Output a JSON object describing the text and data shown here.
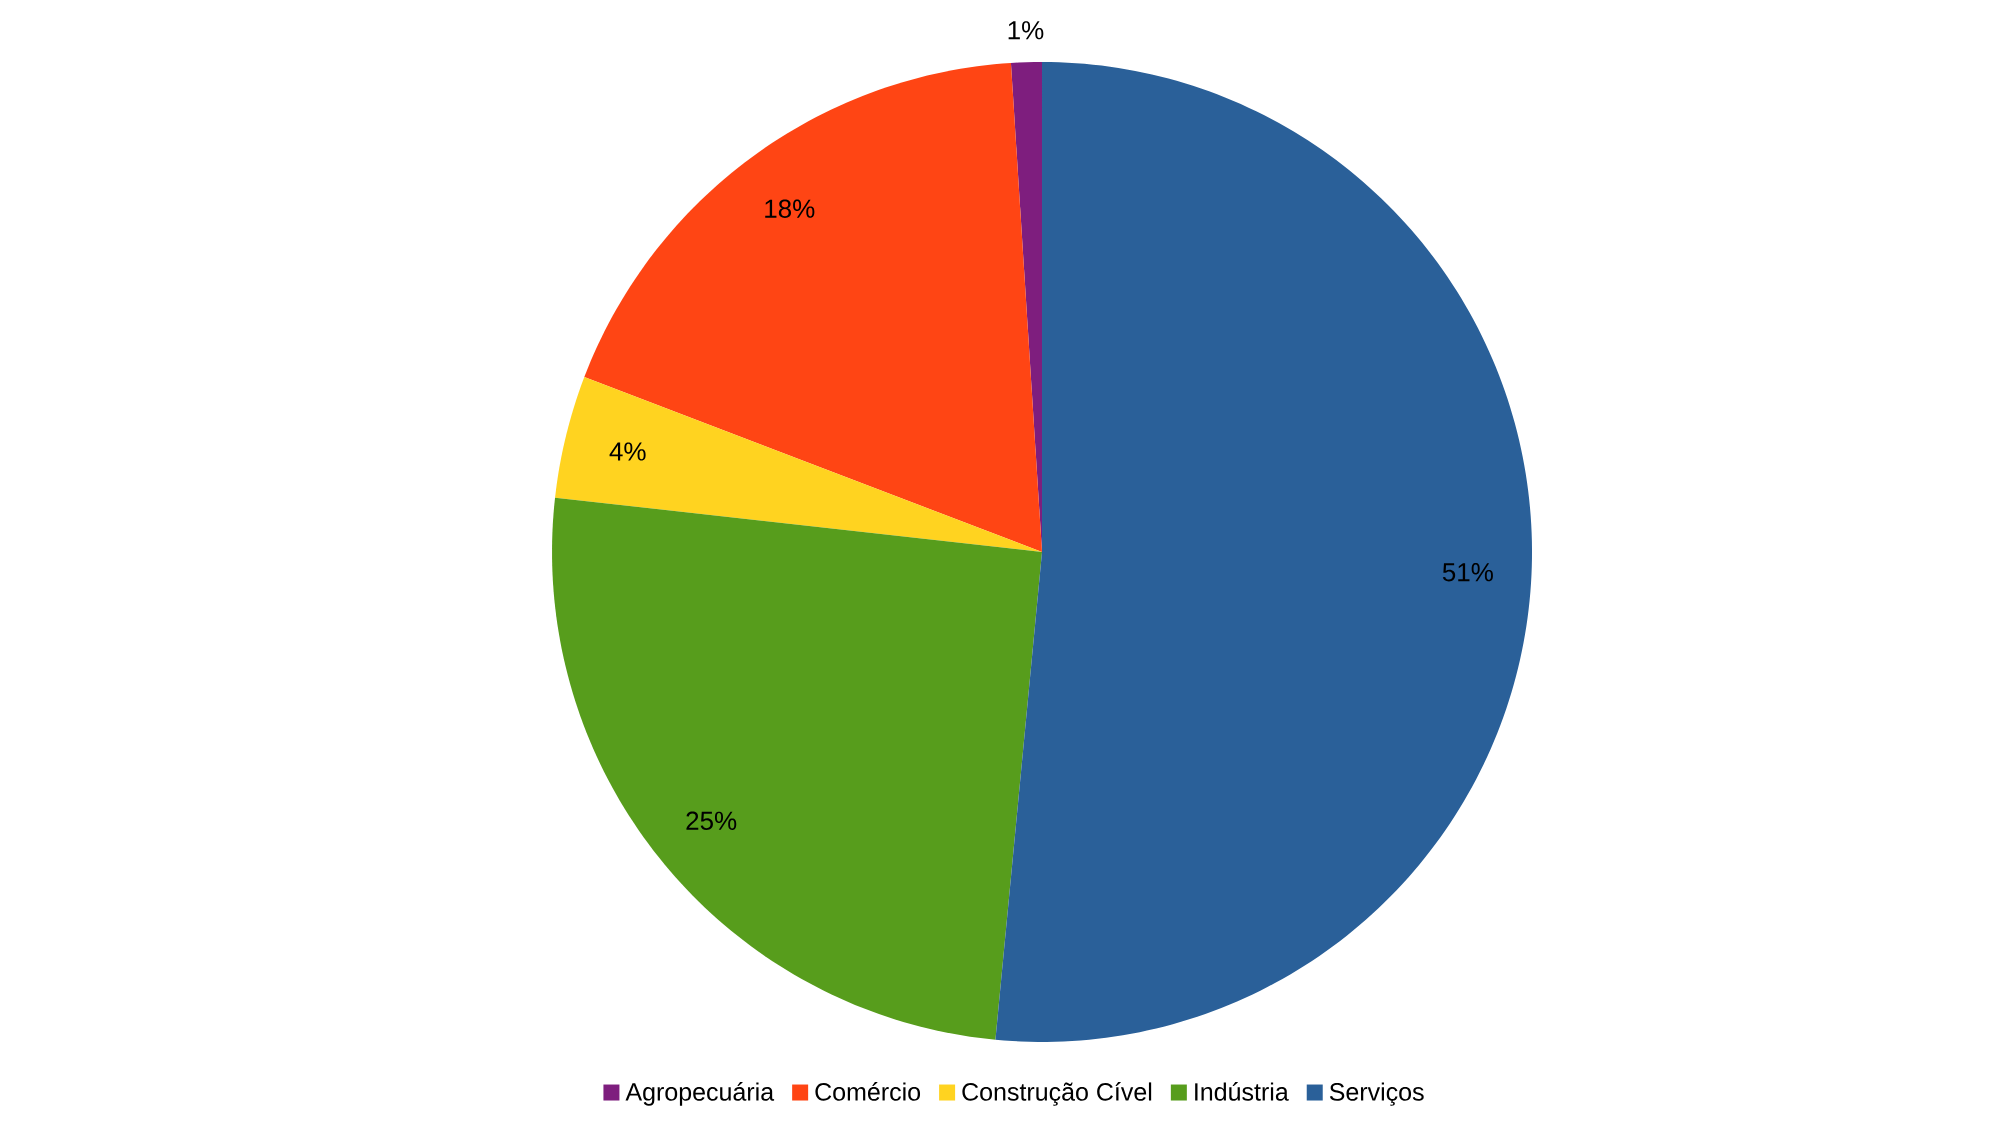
{
  "chart_data": {
    "type": "pie",
    "categories": [
      "Agropecuária",
      "Comércio",
      "Construção Cível",
      "Indústria",
      "Serviços"
    ],
    "values": [
      1,
      18,
      4,
      25,
      51
    ],
    "value_labels": [
      "1%",
      "18%",
      "4%",
      "25%",
      "51%"
    ],
    "colors": [
      "#7e1e7e",
      "#ff4514",
      "#ffd320",
      "#579d1c",
      "#2a6099"
    ],
    "legend": "bottom"
  }
}
